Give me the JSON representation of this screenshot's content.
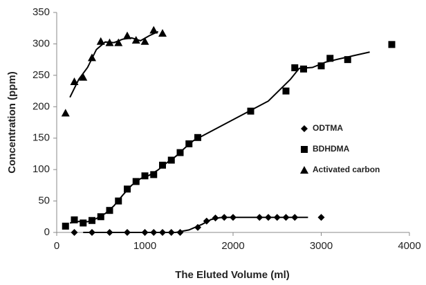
{
  "chart_data": {
    "type": "scatter",
    "x_label": "The Eluted Volume (ml)",
    "y_label": "Concentration (ppm)",
    "xlim": [
      0,
      4000
    ],
    "xticks": [
      0,
      1000,
      2000,
      3000,
      4000
    ],
    "ylim": [
      0,
      350
    ],
    "yticks": [
      0,
      50,
      100,
      150,
      200,
      250,
      300,
      350
    ],
    "grid": false,
    "legend": "right",
    "trendline_period": 2,
    "series": [
      {
        "name": "ODTMA",
        "color": "#000000",
        "marker": "diamond",
        "x": [
          200,
          400,
          600,
          800,
          1000,
          1100,
          1200,
          1300,
          1400,
          1600,
          1700,
          1800,
          1900,
          2000,
          2300,
          2400,
          2500,
          2600,
          2700,
          3000
        ],
        "values": [
          0,
          0,
          0,
          0,
          0,
          0,
          0,
          0,
          0,
          8,
          18,
          23,
          24,
          24,
          24,
          24,
          24,
          24,
          24,
          24
        ]
      },
      {
        "name": "BDHDMA",
        "color": "#000000",
        "marker": "square",
        "x": [
          100,
          200,
          300,
          400,
          500,
          600,
          700,
          800,
          900,
          1000,
          1100,
          1200,
          1300,
          1400,
          1500,
          1600,
          2200,
          2600,
          2700,
          2800,
          3000,
          3100,
          3300,
          3800
        ],
        "values": [
          10,
          20,
          15,
          19,
          25,
          35,
          50,
          69,
          81,
          90,
          92,
          107,
          115,
          127,
          141,
          151,
          193,
          225,
          262,
          260,
          265,
          277,
          275,
          299
        ]
      },
      {
        "name": "Activated carbon",
        "color": "#000000",
        "marker": "triangle",
        "x": [
          100,
          200,
          300,
          400,
          500,
          600,
          700,
          800,
          900,
          1000,
          1100,
          1200
        ],
        "values": [
          190,
          240,
          247,
          278,
          304,
          302,
          302,
          313,
          306,
          304,
          322,
          317
        ]
      }
    ]
  }
}
